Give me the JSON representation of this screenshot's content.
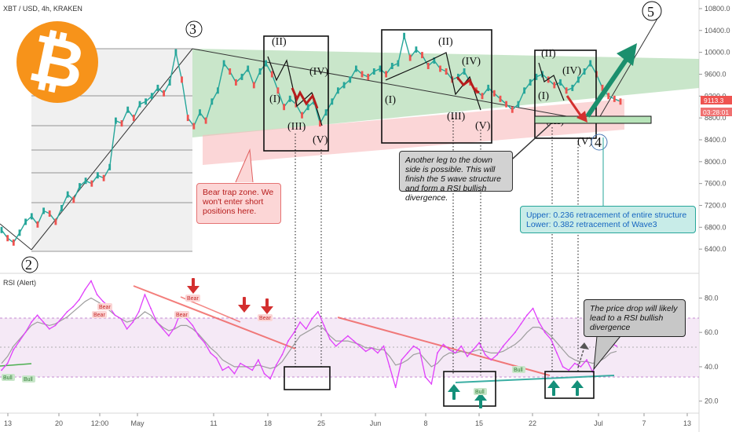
{
  "header": {
    "title": "XBT / USD, 4h, KRAKEN"
  },
  "price_badge": {
    "value": "9113.3",
    "timer": "03:28:01",
    "color": "#ef5350",
    "timer_color": "#f07070"
  },
  "rsi_panel": {
    "title": "RSI (Alert)"
  },
  "annotations": {
    "bear_trap": "Bear trap zone. We won't enter short positions here.",
    "another_leg": "Another leg to the down side is possible. This will finish the 5 wave  structure and form a RSI bullish divergence.",
    "retracement_upper": "Upper: 0.236 retracement of entire structure",
    "retracement_lower": "Lower: 0.382 retracement of Wave3",
    "rsi_note": "The price drop will likely lead to a RSI bullish divergence",
    "bear_tag": "Bear",
    "bull_tag": "Bull"
  },
  "waves": {
    "major": [
      "2",
      "3",
      "4",
      "5"
    ],
    "sub": [
      "(I)",
      "(II)",
      "(III)",
      "(IV)",
      "(V)"
    ]
  },
  "colors": {
    "price_up": "#26a69a",
    "price_down": "#ef5350",
    "green_zone": "#4caf50",
    "red_zone": "#ef5350",
    "rsi_line": "#e040fb",
    "rsi_band": "#e1bee7",
    "bitcoin_orange": "#f7931a",
    "arrow_green": "#1b8f6d",
    "arrow_red": "#d32f2f",
    "teal": "#26a69a"
  },
  "icons": {
    "logo": "bitcoin-logo-icon",
    "up_arrow": "green-up-arrow-icon",
    "down_arrow": "red-down-arrow-icon"
  },
  "chart_data": [
    {
      "type": "line",
      "title": "XBT / USD, 4h, KRAKEN",
      "x_ticks": [
        "13",
        "20",
        "12:00",
        "May",
        "11",
        "18",
        "25",
        "Jun",
        "8",
        "15",
        "22",
        "Jul",
        "7",
        "13"
      ],
      "y_ticks": [
        6400,
        6800,
        7200,
        7600,
        8000,
        8400,
        8800,
        9200,
        9600,
        10000,
        10400,
        10800
      ],
      "ylim": [
        6000,
        10900
      ],
      "series": [
        {
          "values": [
            6750,
            6600,
            6520,
            6700,
            6900,
            7000,
            6850,
            7100,
            7050,
            6900,
            7150,
            7400,
            7300,
            7550,
            7650,
            7600,
            7750,
            7700,
            7900,
            8750,
            8700,
            8950,
            8800,
            9050,
            9100,
            9200,
            9350,
            9250,
            9450,
            10000,
            9500,
            8800,
            8650,
            8900,
            8750,
            9100,
            9300,
            9800,
            9650,
            9450,
            9550,
            9700,
            9400,
            9650,
            9800,
            9600,
            9300,
            9000,
            9150,
            9050,
            8850,
            9000,
            9100,
            8700,
            8900,
            9100,
            9300,
            9400,
            9500,
            9700,
            9600,
            9550,
            9650,
            9700,
            9600,
            9750,
            9800,
            10300,
            9900,
            10050,
            9950,
            9750,
            9850,
            9700,
            9650,
            9500,
            9550,
            9650,
            9450,
            9300,
            9200,
            9350,
            9250,
            9150,
            9050,
            8950,
            9050,
            9300,
            9450,
            9550,
            9600,
            9500,
            9400,
            9450,
            9300,
            9350,
            9500,
            9650,
            9800,
            9600,
            9350,
            9200,
            9150,
            9100
          ]
        }
      ]
    },
    {
      "type": "line",
      "title": "RSI (Alert)",
      "y_ticks": [
        20,
        40,
        60,
        80
      ],
      "ylim": [
        13,
        93
      ],
      "series": [
        {
          "values": [
            38,
            42,
            50,
            55,
            60,
            66,
            70,
            66,
            62,
            64,
            68,
            72,
            75,
            79,
            85,
            90,
            82,
            78,
            75,
            70,
            68,
            62,
            66,
            72,
            82,
            74,
            66,
            62,
            58,
            63,
            72,
            68,
            64,
            58,
            54,
            48,
            45,
            38,
            40,
            36,
            42,
            40,
            38,
            44,
            36,
            33,
            41,
            47,
            55,
            60,
            66,
            62,
            68,
            72,
            64,
            56,
            52,
            55,
            58,
            55,
            52,
            49,
            51,
            48,
            52,
            40,
            28,
            44,
            48,
            52,
            50,
            34,
            30,
            48,
            53,
            50,
            48,
            52,
            46,
            50,
            54,
            47,
            44,
            47,
            52,
            56,
            60,
            65,
            70,
            74,
            66,
            60,
            56,
            48,
            40,
            38,
            42,
            40,
            44,
            37,
            45,
            50,
            54,
            52
          ]
        },
        {
          "values": [
            42,
            46,
            52,
            56,
            60,
            64,
            66,
            65,
            64,
            65,
            67,
            69,
            72,
            75,
            78,
            80,
            78,
            76,
            73,
            70,
            68,
            66,
            67,
            69,
            72,
            70,
            66,
            63,
            61,
            62,
            64,
            64,
            62,
            59,
            55,
            51,
            48,
            44,
            42,
            40,
            40,
            40,
            40,
            41,
            40,
            39,
            40,
            43,
            48,
            53,
            58,
            60,
            62,
            64,
            62,
            58,
            55,
            55,
            55,
            54,
            53,
            51,
            51,
            50,
            50,
            46,
            41,
            42,
            44,
            47,
            48,
            44,
            40,
            42,
            46,
            48,
            48,
            49,
            48,
            49,
            50,
            49,
            48,
            48,
            49,
            51,
            53,
            56,
            60,
            63,
            63,
            61,
            58,
            54,
            50,
            46,
            44,
            43,
            43,
            42,
            43,
            45,
            48,
            49
          ]
        }
      ]
    }
  ]
}
